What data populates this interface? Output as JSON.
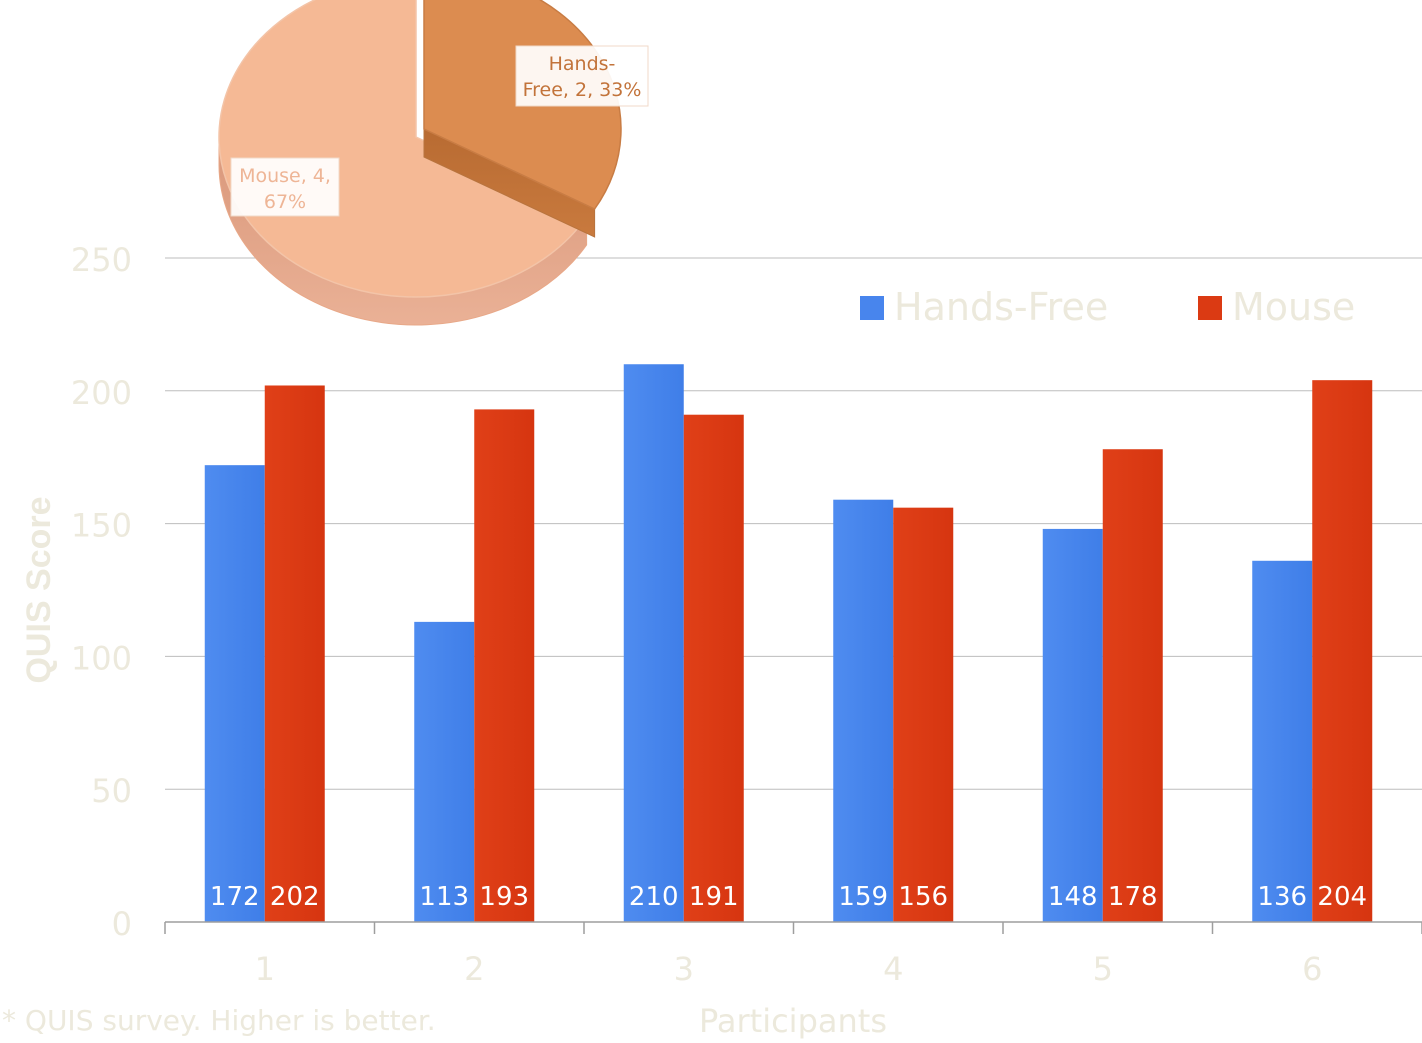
{
  "chart_data": [
    {
      "type": "bar",
      "categories": [
        "1",
        "2",
        "3",
        "4",
        "5",
        "6"
      ],
      "series": [
        {
          "name": "Hands-Free",
          "color": "#4885ed",
          "values": [
            172,
            113,
            210,
            159,
            148,
            136
          ]
        },
        {
          "name": "Mouse",
          "color": "#db3a13",
          "values": [
            202,
            193,
            191,
            156,
            178,
            204
          ]
        }
      ],
      "ylabel": "QUIS Score",
      "xlabel": "Participants",
      "ylim": [
        0,
        250
      ],
      "yticks": [
        0,
        50,
        100,
        150,
        200,
        250
      ],
      "grid": true,
      "legend": "top-right",
      "data_labels": "inside-bottom"
    },
    {
      "type": "pie",
      "slices": [
        {
          "name": "Hands-Free",
          "value": 2,
          "percent": 33,
          "label": "Hands-Free, 2, 33%",
          "label_lines": [
            "Hands-",
            "Free, 2, 33%"
          ],
          "color": "#dc8c50"
        },
        {
          "name": "Mouse",
          "value": 4,
          "percent": 67,
          "label": "Mouse, 4, 67%",
          "label_lines": [
            "Mouse, 4,",
            "67%"
          ],
          "color": "#f5b995"
        }
      ],
      "style": "3d-exploded"
    }
  ],
  "footnote": "* QUIS survey. Higher is better."
}
